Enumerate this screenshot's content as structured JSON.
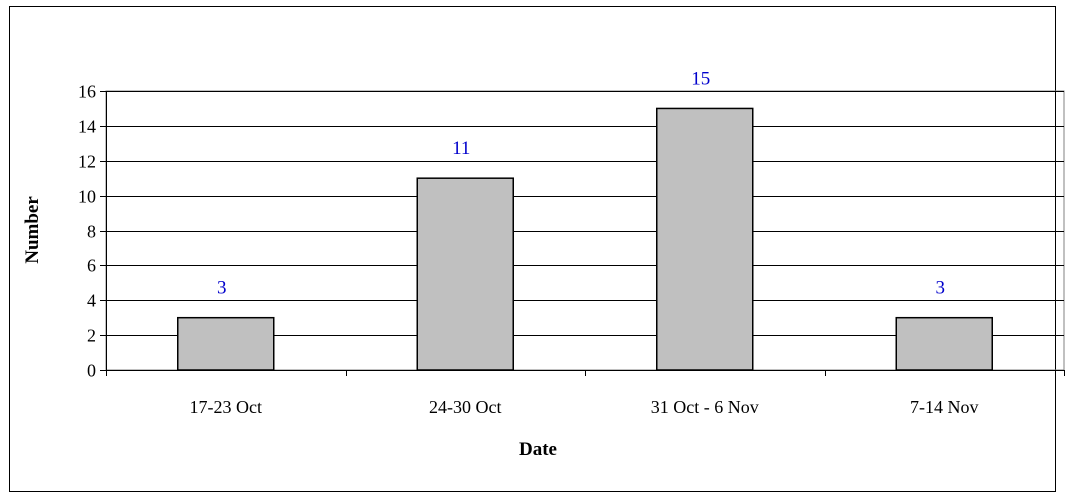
{
  "chart_data": {
    "type": "bar",
    "title": "",
    "xlabel": "Date",
    "ylabel": "Number",
    "categories": [
      "17-23 Oct",
      "24-30 Oct",
      "31 Oct - 6 Nov",
      "7-14 Nov"
    ],
    "values": [
      3,
      11,
      15,
      3
    ],
    "data_labels": [
      "3",
      "11",
      "15",
      "3"
    ],
    "ylim": [
      0,
      16
    ],
    "yticks": [
      0,
      2,
      4,
      6,
      8,
      10,
      12,
      14,
      16
    ],
    "ytick_labels": [
      "0",
      "2",
      "4",
      "6",
      "8",
      "10",
      "12",
      "14",
      "16"
    ],
    "grid": true,
    "legend": "none",
    "colors": {
      "bar_fill": "#c0c0c0",
      "bar_stroke": "#000000",
      "grid": "#000000",
      "data_label": "#0000cc"
    }
  }
}
